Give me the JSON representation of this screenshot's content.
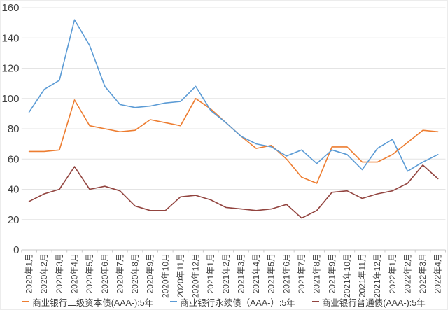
{
  "chart_data": {
    "type": "line",
    "title": "",
    "xlabel": "",
    "ylabel": "",
    "grid": true,
    "legend_position": "bottom",
    "ylim": [
      0,
      160
    ],
    "ytick_step": 20,
    "ytick_labels": [
      "0",
      "20",
      "40",
      "60",
      "80",
      "100",
      "120",
      "140",
      "160"
    ],
    "categories": [
      "2020年1月",
      "2020年2月",
      "2020年3月",
      "2020年4月",
      "2020年5月",
      "2020年6月",
      "2020年7月",
      "2020年8月",
      "2020年9月",
      "2020年10月",
      "2020年11月",
      "2020年12月",
      "2021年1月",
      "2021年2月",
      "2021年3月",
      "2021年4月",
      "2021年5月",
      "2021年6月",
      "2021年7月",
      "2021年8月",
      "2021年9月",
      "2021年10月",
      "2021年11月",
      "2021年12月",
      "2022年1月",
      "2022年2月",
      "2022年3月",
      "2022年4月"
    ],
    "series": [
      {
        "name": "商业银行二级资本债(AAA-):5年",
        "color": "#ED7D31",
        "values": [
          65,
          65,
          66,
          99,
          82,
          80,
          78,
          79,
          86,
          84,
          82,
          100,
          93,
          84,
          75,
          67,
          69,
          60,
          48,
          44,
          68,
          68,
          58,
          58,
          63,
          71,
          79,
          78
        ]
      },
      {
        "name": "商业银行永续债（AAA-）:5年",
        "color": "#5B9BD5",
        "values": [
          91,
          106,
          112,
          152,
          135,
          108,
          96,
          94,
          95,
          97,
          98,
          108,
          92,
          84,
          75,
          70,
          68,
          62,
          66,
          57,
          66,
          63,
          53,
          67,
          73,
          52,
          58,
          63
        ]
      },
      {
        "name": "商业银行普通债(AAA-):5年",
        "color": "#92443F",
        "values": [
          32,
          37,
          40,
          55,
          40,
          42,
          39,
          29,
          26,
          26,
          35,
          36,
          33,
          28,
          27,
          26,
          27,
          30,
          21,
          26,
          38,
          39,
          34,
          37,
          39,
          44,
          56,
          47
        ]
      }
    ]
  },
  "colors": {
    "background": "#FFFFFF",
    "gridline": "#E4E4E4",
    "axis_line": "#C9C9C9",
    "tick_mark": "#C9C9C9",
    "axis_text": "#3F3F3F",
    "legend_text": "#3F3F3F"
  }
}
